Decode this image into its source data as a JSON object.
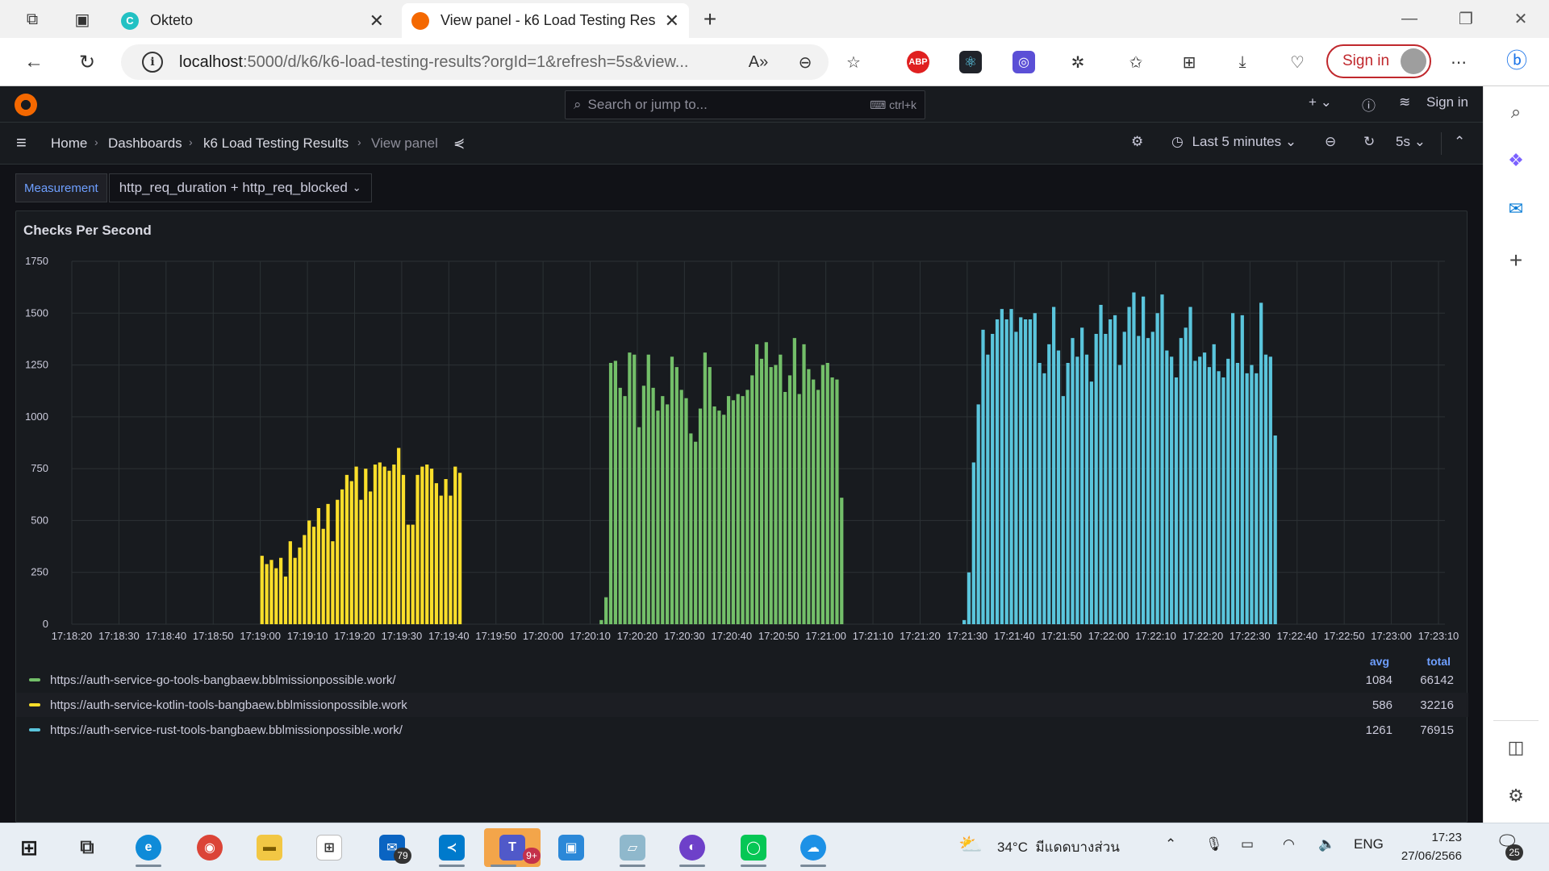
{
  "browser": {
    "tabs": [
      {
        "title": "Okteto",
        "favicon_color": "#22c1c3",
        "favicon_letter": "C",
        "active": false
      },
      {
        "title": "View panel - k6 Load Testing Res",
        "favicon_color": "#f46800",
        "favicon_letter": "",
        "active": true
      }
    ],
    "url_host": "localhost",
    "url_rest": ":5000/d/k6/k6-load-testing-results?orgId=1&refresh=5s&view...",
    "sign_in_label": "Sign in",
    "ext_abp_label": "ABP"
  },
  "grafana": {
    "search_placeholder": "Search or jump to...",
    "search_shortcut": "ctrl+k",
    "top_plus": "+",
    "top_sign_in": "Sign in",
    "breadcrumbs": [
      "Home",
      "Dashboards",
      "k6 Load Testing Results",
      "View panel"
    ],
    "time_range": "Last 5 minutes",
    "refresh_interval": "5s",
    "variable_label": "Measurement",
    "variable_value": "http_req_duration + http_req_blocked",
    "panel_title": "Checks Per Second",
    "legend_headers": {
      "avg": "avg",
      "total": "total"
    }
  },
  "chart_data": {
    "type": "bar",
    "title": "Checks Per Second",
    "ylim": [
      0,
      1750
    ],
    "y_ticks": [
      0,
      250,
      500,
      750,
      1000,
      1250,
      1500,
      1750
    ],
    "x_tick_labels": [
      "17:18:20",
      "17:18:30",
      "17:18:40",
      "17:18:50",
      "17:19:00",
      "17:19:10",
      "17:19:20",
      "17:19:30",
      "17:19:40",
      "17:19:50",
      "17:20:00",
      "17:20:10",
      "17:20:20",
      "17:20:30",
      "17:20:40",
      "17:20:50",
      "17:21:00",
      "17:21:10",
      "17:21:20",
      "17:21:30",
      "17:21:40",
      "17:21:50",
      "17:22:00",
      "17:22:10",
      "17:22:20",
      "17:22:30",
      "17:22:40",
      "17:22:50",
      "17:23:00",
      "17:23:10"
    ],
    "x_range_seconds": [
      0,
      300
    ],
    "grid": true,
    "legend_placement": "bottom",
    "series": [
      {
        "name": "https://auth-service-go-tools-bangbaew.bblmissionpossible.work/",
        "color": "#73bf69",
        "avg": "1084",
        "total": "66142",
        "start_second": 112,
        "values": [
          20,
          130,
          1260,
          1270,
          1140,
          1100,
          1310,
          1300,
          950,
          1150,
          1300,
          1140,
          1030,
          1100,
          1060,
          1290,
          1240,
          1130,
          1090,
          920,
          880,
          1040,
          1310,
          1240,
          1050,
          1030,
          1010,
          1100,
          1080,
          1110,
          1100,
          1130,
          1200,
          1350,
          1280,
          1360,
          1240,
          1250,
          1300,
          1120,
          1200,
          1380,
          1110,
          1350,
          1230,
          1180,
          1130,
          1250,
          1260,
          1190,
          1180,
          610
        ]
      },
      {
        "name": "https://auth-service-kotlin-tools-bangbaew.bblmissionpossible.work",
        "color": "#fade2a",
        "avg": "586",
        "total": "32216",
        "start_second": 40,
        "values": [
          330,
          290,
          310,
          270,
          320,
          230,
          400,
          320,
          370,
          430,
          500,
          470,
          560,
          460,
          580,
          400,
          600,
          650,
          720,
          690,
          760,
          600,
          750,
          640,
          770,
          780,
          760,
          740,
          770,
          850,
          720,
          480,
          480,
          720,
          760,
          770,
          750,
          680,
          620,
          700,
          620,
          760,
          730
        ]
      },
      {
        "name": "https://auth-service-rust-tools-bangbaew.bblmissionpossible.work/",
        "color": "#5ac5dc",
        "avg": "1261",
        "total": "76915",
        "start_second": 189,
        "values": [
          20,
          250,
          780,
          1060,
          1420,
          1300,
          1400,
          1470,
          1520,
          1470,
          1520,
          1410,
          1480,
          1470,
          1470,
          1500,
          1260,
          1210,
          1350,
          1530,
          1320,
          1100,
          1260,
          1380,
          1290,
          1430,
          1300,
          1170,
          1400,
          1540,
          1400,
          1470,
          1490,
          1250,
          1410,
          1530,
          1600,
          1390,
          1580,
          1380,
          1410,
          1500,
          1590,
          1320,
          1290,
          1190,
          1380,
          1430,
          1530,
          1270,
          1290,
          1310,
          1240,
          1350,
          1220,
          1190,
          1280,
          1500,
          1260,
          1490,
          1210,
          1250,
          1210,
          1550,
          1300,
          1290,
          910
        ]
      }
    ]
  },
  "taskbar": {
    "weather_temp": "34°C",
    "weather_text": "มีแดดบางส่วน",
    "lang": "ENG",
    "time": "17:23",
    "date": "27/06/2566",
    "outlook_badge": "79",
    "teams_badge": "9+",
    "notif_badge": "25"
  }
}
